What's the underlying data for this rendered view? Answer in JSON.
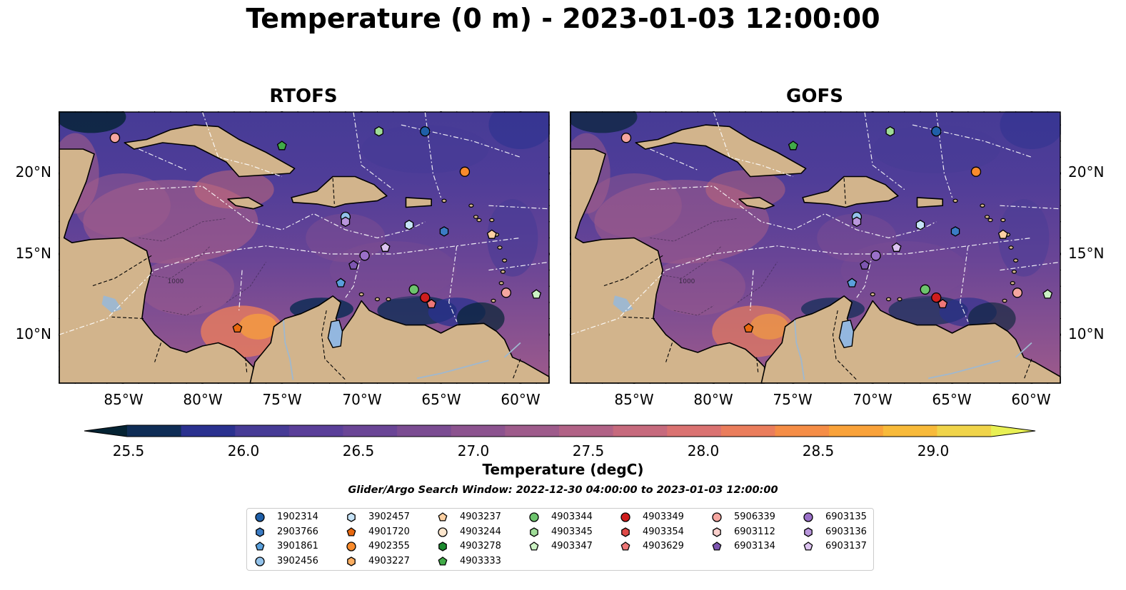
{
  "title": "Temperature (0 m) - 2023-01-03 12:00:00",
  "panels": [
    {
      "title": "RTOFS"
    },
    {
      "title": "GOFS"
    }
  ],
  "map": {
    "lon_range": [
      -89,
      -58.2
    ],
    "lat_range": [
      7,
      23.8
    ],
    "lat_ticks": [
      "20°N",
      "15°N",
      "10°N"
    ],
    "lon_ticks": [
      "85°W",
      "80°W",
      "75°W",
      "70°W",
      "65°W",
      "60°W"
    ],
    "land_color": "#d2b48c",
    "contour_label": "1000"
  },
  "colorbar": {
    "label": "Temperature (degC)",
    "ticks": [
      "25.5",
      "26.0",
      "26.5",
      "27.0",
      "27.5",
      "28.0",
      "28.5",
      "29.0"
    ],
    "range": [
      25.5,
      29.0
    ],
    "extend": "both",
    "colormap": [
      "#042333",
      "#0f2d56",
      "#2a318f",
      "#463b96",
      "#5a3f99",
      "#6a4596",
      "#7b4c92",
      "#8c538f",
      "#9e5b8b",
      "#b16286",
      "#c66a7d",
      "#da7271",
      "#ea7d5c",
      "#f58d46",
      "#f9a23a",
      "#f8ba3a",
      "#f0d44a",
      "#e8f054"
    ]
  },
  "search_window": "Glider/Argo Search Window: 2022-12-30 04:00:00 to 2023-01-03 12:00:00",
  "legend": {
    "columns": [
      [
        {
          "id": "1902314",
          "marker": "circle",
          "color": "#1f5fa8"
        },
        {
          "id": "2903766",
          "marker": "hexagon",
          "color": "#3b7cc4"
        },
        {
          "id": "3901861",
          "marker": "pentagon",
          "color": "#5aa0dc"
        },
        {
          "id": "3902456",
          "marker": "circle",
          "color": "#93c2ea"
        }
      ],
      [
        {
          "id": "3902457",
          "marker": "hexagon",
          "color": "#c6e3f7"
        },
        {
          "id": "4901720",
          "marker": "pentagon",
          "color": "#e8680f"
        },
        {
          "id": "4902355",
          "marker": "circle",
          "color": "#f98b2c"
        },
        {
          "id": "4903227",
          "marker": "hexagon",
          "color": "#fbae62"
        }
      ],
      [
        {
          "id": "4903237",
          "marker": "pentagon",
          "color": "#fdd0a2"
        },
        {
          "id": "4903244",
          "marker": "circle",
          "color": "#fde6cd"
        },
        {
          "id": "4903278",
          "marker": "hexagon",
          "color": "#1b8a2e"
        },
        {
          "id": "4903333",
          "marker": "pentagon",
          "color": "#41ab48"
        }
      ],
      [
        {
          "id": "4903344",
          "marker": "circle",
          "color": "#6dc46d"
        },
        {
          "id": "4903345",
          "marker": "hexagon",
          "color": "#9fdc97"
        },
        {
          "id": "4903347",
          "marker": "pentagon",
          "color": "#ccf2c4"
        }
      ],
      [
        {
          "id": "4903349",
          "marker": "circle",
          "color": "#cf1d1d"
        },
        {
          "id": "4903354",
          "marker": "hexagon",
          "color": "#e04a48"
        },
        {
          "id": "4903629",
          "marker": "pentagon",
          "color": "#ee7777"
        }
      ],
      [
        {
          "id": "5906339",
          "marker": "circle",
          "color": "#f5a6a0"
        },
        {
          "id": "6903112",
          "marker": "hexagon",
          "color": "#fbd0cc"
        },
        {
          "id": "6903134",
          "marker": "pentagon",
          "color": "#7d56b0"
        }
      ],
      [
        {
          "id": "6903135",
          "marker": "circle",
          "color": "#9a70c8"
        },
        {
          "id": "6903136",
          "marker": "hexagon",
          "color": "#b996dc"
        },
        {
          "id": "6903137",
          "marker": "pentagon",
          "color": "#dcc3f0"
        }
      ]
    ]
  },
  "floats_plotted": [
    {
      "id": "5906339",
      "lon": -85.5,
      "lat": 22.2
    },
    {
      "id": "4903333",
      "lon": -75.0,
      "lat": 21.7
    },
    {
      "id": "4903345",
      "lon": -68.9,
      "lat": 22.6
    },
    {
      "id": "1902314",
      "lon": -66.0,
      "lat": 22.6
    },
    {
      "id": "4902355",
      "lon": -63.5,
      "lat": 20.1
    },
    {
      "id": "3902456",
      "lon": -71.0,
      "lat": 17.3
    },
    {
      "id": "6903136",
      "lon": -71.0,
      "lat": 17.0
    },
    {
      "id": "3902457",
      "lon": -67.0,
      "lat": 16.8
    },
    {
      "id": "2903766",
      "lon": -64.8,
      "lat": 16.4
    },
    {
      "id": "4903237",
      "lon": -61.8,
      "lat": 16.2
    },
    {
      "id": "6903137",
      "lon": -68.5,
      "lat": 15.4
    },
    {
      "id": "6903135",
      "lon": -69.8,
      "lat": 14.9
    },
    {
      "id": "6903134",
      "lon": -70.5,
      "lat": 14.3
    },
    {
      "id": "3901861",
      "lon": -71.3,
      "lat": 13.2
    },
    {
      "id": "4903344",
      "lon": -66.7,
      "lat": 12.8
    },
    {
      "id": "4903349",
      "lon": -66.0,
      "lat": 12.3
    },
    {
      "id": "4903629",
      "lon": -65.6,
      "lat": 11.9
    },
    {
      "id": "5906339",
      "lon": -60.9,
      "lat": 12.6
    },
    {
      "id": "4903347",
      "lon": -59.0,
      "lat": 12.5
    },
    {
      "id": "4901720",
      "lon": -77.8,
      "lat": 10.4
    }
  ]
}
